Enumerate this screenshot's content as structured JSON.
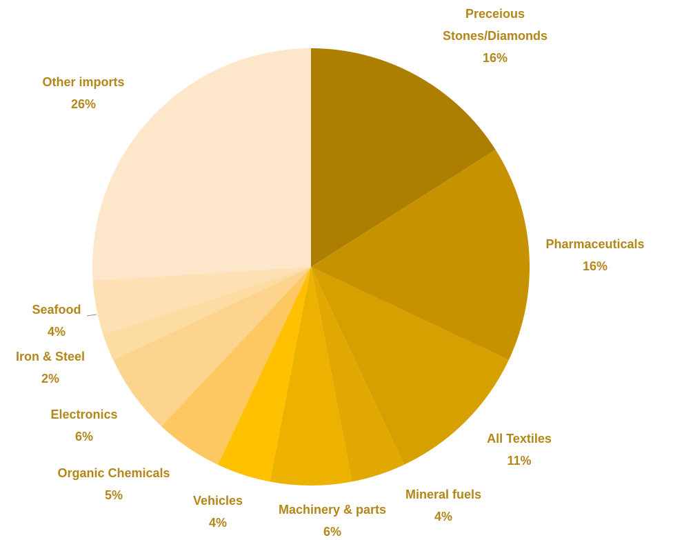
{
  "chart_data": {
    "type": "pie",
    "categories": [
      "Preceious Stones/Diamonds",
      "Pharmaceuticals",
      "All Textiles",
      "Mineral fuels",
      "Machinery & parts",
      "Vehicles",
      "Organic Chemicals",
      "Electronics",
      "Iron & Steel",
      "Seafood",
      "Other imports"
    ],
    "values": [
      16,
      16,
      11,
      4,
      6,
      4,
      5,
      6,
      2,
      4,
      26
    ],
    "value_labels": [
      "16%",
      "16%",
      "11%",
      "4%",
      "6%",
      "4%",
      "5%",
      "6%",
      "2%",
      "4%",
      "26%"
    ],
    "colors": [
      "#ad7f00",
      "#c79200",
      "#d6a000",
      "#e0a800",
      "#edb200",
      "#ffc000",
      "#fdc862",
      "#fdd48e",
      "#fddca4",
      "#fde0b3",
      "#fde6ca"
    ]
  }
}
